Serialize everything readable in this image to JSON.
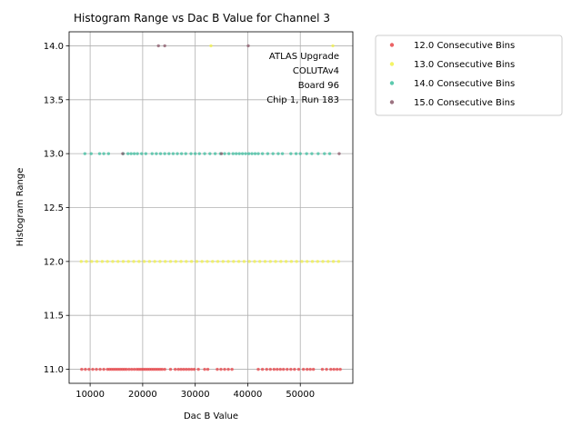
{
  "chart_data": {
    "type": "scatter",
    "title": "Histogram Range vs Dac B Value for Channel 3",
    "xlabel": "Dac B Value",
    "ylabel": "Histogram Range",
    "xlim": [
      6000,
      60000
    ],
    "ylim": [
      10.87,
      14.13
    ],
    "xticks": [
      10000,
      20000,
      30000,
      40000,
      50000
    ],
    "xtick_labels": [
      "10000",
      "20000",
      "30000",
      "40000",
      "50000"
    ],
    "yticks": [
      11.0,
      11.5,
      12.0,
      12.5,
      13.0,
      13.5,
      14.0
    ],
    "ytick_labels": [
      "11.0",
      "11.5",
      "12.0",
      "12.5",
      "13.0",
      "13.5",
      "14.0"
    ],
    "grid": true,
    "legend_position": "outside-right",
    "annotation": [
      "ATLAS Upgrade",
      "COLUTAv4",
      "Board 96",
      "Chip 1, Run 183"
    ],
    "series": [
      {
        "name": "12.0 Consecutive Bins",
        "color": "#e8464a",
        "y": 11.0,
        "x": [
          8400,
          9100,
          9800,
          10500,
          11200,
          11900,
          12600,
          13300,
          13700,
          14100,
          14500,
          14900,
          15300,
          15700,
          16100,
          16500,
          16900,
          17400,
          17900,
          18400,
          18900,
          19300,
          19700,
          20100,
          20500,
          20900,
          21300,
          21700,
          22100,
          22500,
          22900,
          23300,
          23700,
          24200,
          25300,
          26200,
          26800,
          27300,
          27800,
          28300,
          28800,
          29300,
          29800,
          30600,
          31800,
          32400,
          34200,
          34900,
          35600,
          36300,
          37000,
          42000,
          42800,
          43600,
          44300,
          45000,
          45600,
          46200,
          46800,
          47500,
          48200,
          48900,
          49700,
          50600,
          51300,
          51900,
          52500,
          54200,
          55000,
          55800,
          56400,
          57000,
          57600
        ]
      },
      {
        "name": "13.0 Consecutive Bins",
        "color": "#f2f24a",
        "y": 12.0,
        "x": [
          8300,
          9300,
          10300,
          11300,
          12300,
          13300,
          14300,
          15300,
          16300,
          17300,
          18300,
          19300,
          20300,
          21300,
          22300,
          23300,
          24300,
          25300,
          26300,
          27300,
          28300,
          29300,
          30300,
          31300,
          32300,
          33300,
          34300,
          35300,
          36300,
          37300,
          38300,
          39300,
          40300,
          41300,
          42300,
          43300,
          44300,
          45300,
          46300,
          47300,
          48300,
          49300,
          50300,
          51300,
          52300,
          53300,
          54300,
          55300,
          56300,
          57300
        ]
      },
      {
        "name": "14.0 Consecutive Bins",
        "color": "#3fbfa0",
        "y": 13.0,
        "x": [
          9000,
          10200,
          11800,
          12600,
          13500,
          16300,
          17200,
          17800,
          18400,
          19000,
          19800,
          20600,
          21800,
          22600,
          23400,
          24200,
          25000,
          25800,
          26600,
          27400,
          28200,
          29200,
          30000,
          30800,
          31800,
          32800,
          33800,
          34800,
          35600,
          36400,
          37200,
          37800,
          38400,
          39000,
          39600,
          40200,
          40800,
          41400,
          42000,
          42800,
          43800,
          44800,
          45800,
          46600,
          48200,
          49200,
          50000,
          51200,
          52200,
          53400,
          54600,
          55600
        ]
      },
      {
        "name": "15.0 Consecutive Bins",
        "color": "#8b5a6b",
        "y_points": [
          {
            "x": 23000,
            "y": 14.0
          },
          {
            "x": 24200,
            "y": 14.0
          },
          {
            "x": 40100,
            "y": 14.0
          },
          {
            "x": 16200,
            "y": 13.0
          },
          {
            "x": 35000,
            "y": 13.0
          },
          {
            "x": 57400,
            "y": 13.0
          }
        ]
      }
    ],
    "extra_points": [
      {
        "series": "13.0 Consecutive Bins",
        "x": 33000,
        "y": 14.0
      },
      {
        "series": "13.0 Consecutive Bins",
        "x": 56200,
        "y": 14.0
      }
    ]
  }
}
